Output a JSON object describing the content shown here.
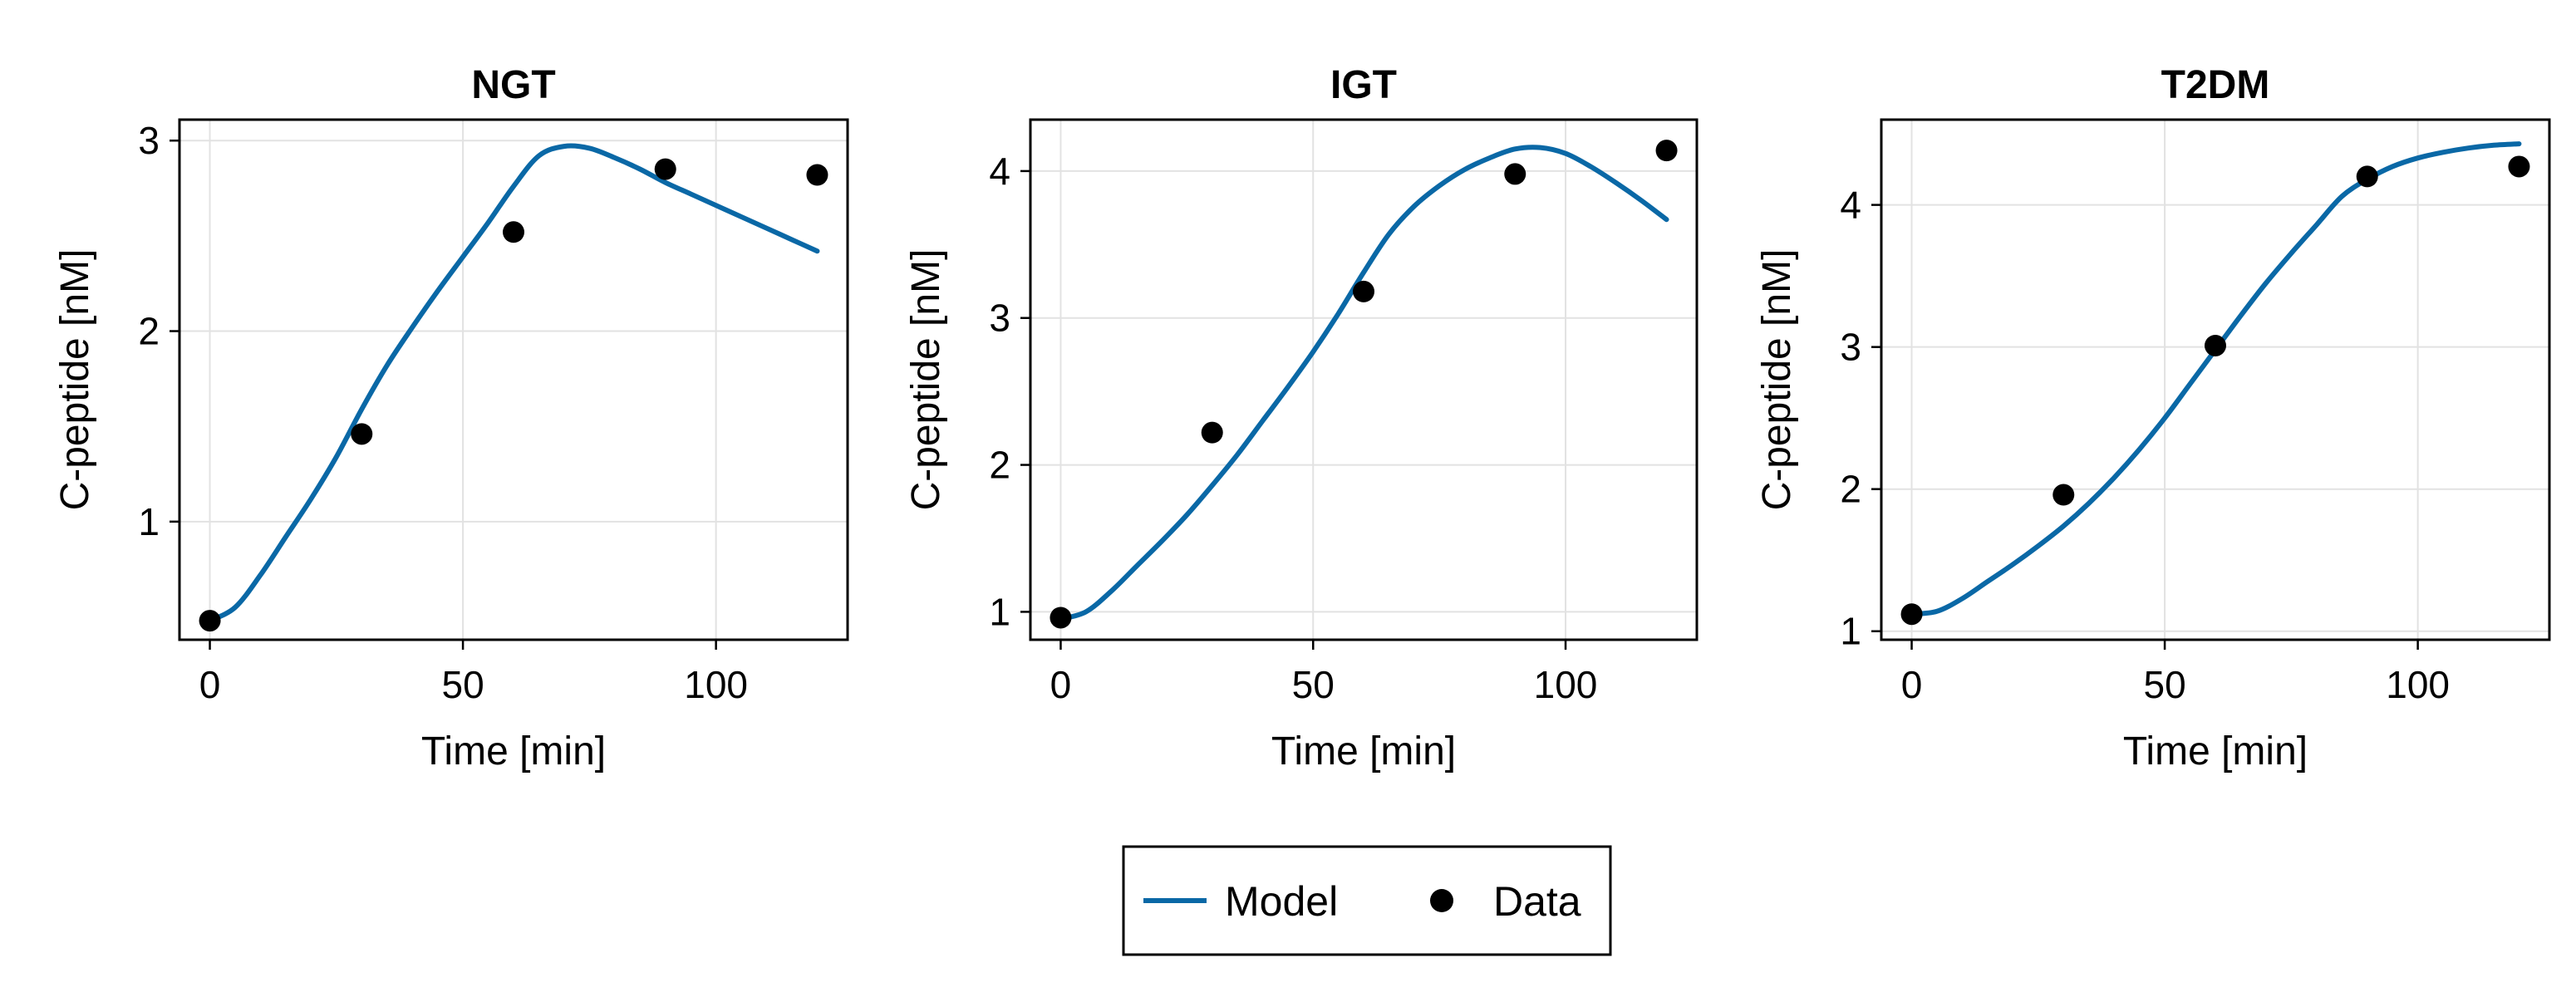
{
  "colors": {
    "model": "#0a68a6",
    "data": "#000000",
    "grid": "#e2e2e2",
    "frame": "#000000"
  },
  "legend": {
    "placement": "bottom-center",
    "items": [
      {
        "label": "Model",
        "marker": "line"
      },
      {
        "label": "Data",
        "marker": "dot"
      }
    ]
  },
  "chart_data": [
    {
      "type": "line",
      "title": "NGT",
      "xlabel": "Time [min]",
      "ylabel": "C-peptide [nM]",
      "xlim": [
        -6,
        126
      ],
      "ylim": [
        0.38,
        3.11
      ],
      "xticks": [
        0,
        50,
        100
      ],
      "yticks": [
        1,
        2,
        3
      ],
      "grid": true,
      "series": [
        {
          "name": "Model",
          "style": "line",
          "x": [
            0,
            5,
            10,
            15,
            20,
            25,
            30,
            35,
            40,
            45,
            50,
            55,
            60,
            65,
            70,
            75,
            80,
            85,
            90,
            95,
            100,
            105,
            110,
            115,
            120
          ],
          "y": [
            0.48,
            0.55,
            0.72,
            0.92,
            1.12,
            1.34,
            1.59,
            1.82,
            2.02,
            2.21,
            2.39,
            2.57,
            2.76,
            2.92,
            2.97,
            2.96,
            2.91,
            2.85,
            2.78,
            2.72,
            2.66,
            2.6,
            2.54,
            2.48,
            2.42
          ]
        },
        {
          "name": "Data",
          "style": "scatter",
          "x": [
            0,
            30,
            60,
            90,
            120
          ],
          "y": [
            0.48,
            1.46,
            2.52,
            2.85,
            2.82
          ]
        }
      ]
    },
    {
      "type": "line",
      "title": "IGT",
      "xlabel": "Time [min]",
      "ylabel": "C-peptide [nM]",
      "xlim": [
        -6,
        126
      ],
      "ylim": [
        0.81,
        4.35
      ],
      "xticks": [
        0,
        50,
        100
      ],
      "yticks": [
        1,
        2,
        3,
        4
      ],
      "grid": true,
      "series": [
        {
          "name": "Model",
          "style": "line",
          "x": [
            0,
            5,
            10,
            15,
            20,
            25,
            30,
            35,
            40,
            45,
            50,
            55,
            60,
            65,
            70,
            75,
            80,
            85,
            90,
            95,
            100,
            105,
            110,
            115,
            120
          ],
          "y": [
            0.95,
            1.0,
            1.14,
            1.31,
            1.48,
            1.66,
            1.86,
            2.07,
            2.3,
            2.53,
            2.77,
            3.03,
            3.31,
            3.57,
            3.76,
            3.9,
            4.01,
            4.09,
            4.15,
            4.16,
            4.12,
            4.03,
            3.92,
            3.8,
            3.67
          ]
        },
        {
          "name": "Data",
          "style": "scatter",
          "x": [
            0,
            30,
            60,
            90,
            120
          ],
          "y": [
            0.96,
            2.22,
            3.18,
            3.98,
            4.14
          ]
        }
      ]
    },
    {
      "type": "line",
      "title": "T2DM",
      "xlabel": "Time [min]",
      "ylabel": "C-peptide [nM]",
      "xlim": [
        -6,
        126
      ],
      "ylim": [
        0.94,
        4.6
      ],
      "xticks": [
        0,
        50,
        100
      ],
      "yticks": [
        1,
        2,
        3,
        4
      ],
      "grid": true,
      "series": [
        {
          "name": "Model",
          "style": "line",
          "x": [
            0,
            5,
            10,
            15,
            20,
            25,
            30,
            35,
            40,
            45,
            50,
            55,
            60,
            65,
            70,
            75,
            80,
            85,
            90,
            95,
            100,
            105,
            110,
            115,
            120
          ],
          "y": [
            1.12,
            1.14,
            1.23,
            1.35,
            1.47,
            1.6,
            1.74,
            1.9,
            2.08,
            2.28,
            2.5,
            2.74,
            2.98,
            3.22,
            3.45,
            3.66,
            3.86,
            4.06,
            4.18,
            4.27,
            4.33,
            4.37,
            4.4,
            4.42,
            4.43
          ]
        },
        {
          "name": "Data",
          "style": "scatter",
          "x": [
            0,
            30,
            60,
            90,
            120
          ],
          "y": [
            1.12,
            1.96,
            3.01,
            4.2,
            4.27
          ]
        }
      ]
    }
  ]
}
